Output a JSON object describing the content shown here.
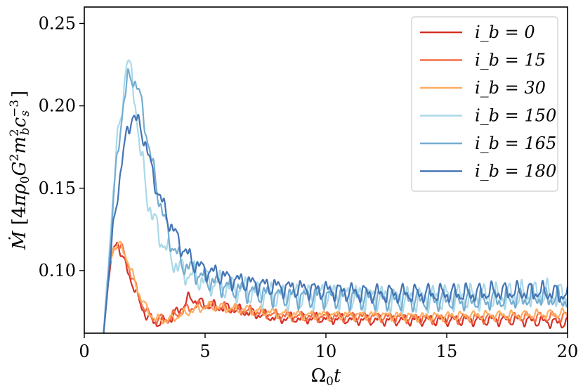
{
  "chart_data": {
    "type": "line",
    "xlabel": "Ω₀t",
    "ylabel": "Ṁ [4πρ₀G²m_b²c_s⁻³]",
    "xlim": [
      0,
      20
    ],
    "ylim": [
      0.062,
      0.26
    ],
    "xticks": [
      0,
      5,
      10,
      15,
      20
    ],
    "xtick_labels": [
      "0",
      "5",
      "10",
      "15",
      "20"
    ],
    "yticks": [
      0.1,
      0.15,
      0.2,
      0.25
    ],
    "ytick_labels": [
      "0.10",
      "0.15",
      "0.20",
      "0.25"
    ],
    "grid": false,
    "legend_position": "top-right",
    "series": [
      {
        "name": "i_b = 0",
        "legend_label": "i_b = 0",
        "color": "#d73027",
        "x": [
          0.8,
          1.0,
          1.2,
          1.35,
          1.5,
          1.7,
          2.0,
          2.3,
          2.6,
          3.0,
          3.5,
          4.0,
          4.3,
          4.6,
          5.0,
          5.5,
          6.0,
          7.0,
          8.0,
          9.0,
          10.0,
          12.0,
          14.0,
          16.0,
          18.0,
          20.0
        ],
        "y": [
          0.062,
          0.095,
          0.112,
          0.118,
          0.112,
          0.103,
          0.092,
          0.08,
          0.072,
          0.068,
          0.07,
          0.077,
          0.083,
          0.082,
          0.079,
          0.078,
          0.077,
          0.074,
          0.071,
          0.071,
          0.071,
          0.07,
          0.07,
          0.07,
          0.07,
          0.068
        ],
        "amp": 0.004
      },
      {
        "name": "i_b = 15",
        "legend_label": "i_b = 15",
        "color": "#f46d43",
        "x": [
          0.8,
          1.0,
          1.2,
          1.4,
          1.6,
          1.8,
          2.0,
          2.3,
          2.6,
          3.0,
          3.5,
          4.0,
          4.5,
          5.0,
          5.5,
          6.0,
          7.0,
          8.0,
          9.0,
          10.0,
          12.0,
          14.0,
          16.0,
          18.0,
          20.0
        ],
        "y": [
          0.062,
          0.098,
          0.113,
          0.116,
          0.112,
          0.104,
          0.095,
          0.083,
          0.074,
          0.07,
          0.071,
          0.075,
          0.078,
          0.079,
          0.078,
          0.077,
          0.075,
          0.073,
          0.072,
          0.072,
          0.072,
          0.071,
          0.071,
          0.072,
          0.072
        ],
        "amp": 0.0038
      },
      {
        "name": "i_b = 30",
        "legend_label": "i_b = 30",
        "color": "#fdae61",
        "x": [
          0.8,
          1.0,
          1.2,
          1.4,
          1.6,
          1.8,
          2.0,
          2.3,
          2.6,
          3.0,
          3.5,
          4.0,
          4.5,
          5.0,
          5.5,
          6.0,
          7.0,
          8.0,
          9.0,
          10.0,
          12.0,
          14.0,
          16.0,
          18.0,
          20.0
        ],
        "y": [
          0.062,
          0.1,
          0.114,
          0.116,
          0.113,
          0.106,
          0.097,
          0.085,
          0.076,
          0.07,
          0.07,
          0.073,
          0.076,
          0.078,
          0.078,
          0.077,
          0.076,
          0.074,
          0.073,
          0.073,
          0.073,
          0.072,
          0.073,
          0.073,
          0.074
        ],
        "amp": 0.0035
      },
      {
        "name": "i_b = 150",
        "legend_label": "i_b = 150",
        "color": "#abd9e9",
        "x": [
          0.8,
          1.0,
          1.2,
          1.4,
          1.6,
          1.75,
          1.9,
          2.1,
          2.3,
          2.6,
          3.0,
          3.5,
          4.0,
          4.5,
          5.0,
          5.5,
          6.0,
          7.0,
          8.0,
          9.0,
          10.0,
          11.0,
          12.0,
          13.0,
          14.0,
          15.0,
          16.0,
          17.0,
          18.0,
          19.0,
          20.0
        ],
        "y": [
          0.062,
          0.105,
          0.15,
          0.18,
          0.205,
          0.23,
          0.22,
          0.205,
          0.175,
          0.145,
          0.125,
          0.11,
          0.1,
          0.097,
          0.094,
          0.092,
          0.09,
          0.087,
          0.085,
          0.085,
          0.086,
          0.085,
          0.084,
          0.083,
          0.083,
          0.084,
          0.084,
          0.084,
          0.085,
          0.086,
          0.084
        ],
        "amp": 0.01
      },
      {
        "name": "i_b = 165",
        "legend_label": "i_b = 165",
        "color": "#74add1",
        "x": [
          0.8,
          1.0,
          1.2,
          1.4,
          1.6,
          1.8,
          2.0,
          2.2,
          2.5,
          2.8,
          3.0,
          3.5,
          4.0,
          4.5,
          5.0,
          5.5,
          6.0,
          7.0,
          8.0,
          9.0,
          10.0,
          11.0,
          12.0,
          13.0,
          14.0,
          15.0,
          16.0,
          17.0,
          18.0,
          19.0,
          20.0
        ],
        "y": [
          0.062,
          0.1,
          0.14,
          0.175,
          0.2,
          0.215,
          0.218,
          0.212,
          0.19,
          0.165,
          0.15,
          0.12,
          0.105,
          0.1,
          0.095,
          0.092,
          0.09,
          0.087,
          0.085,
          0.084,
          0.084,
          0.083,
          0.083,
          0.082,
          0.082,
          0.082,
          0.082,
          0.082,
          0.083,
          0.084,
          0.082
        ],
        "amp": 0.008
      },
      {
        "name": "i_b = 180",
        "legend_label": "i_b = 180",
        "color": "#4575b4",
        "x": [
          0.8,
          1.0,
          1.2,
          1.4,
          1.6,
          1.8,
          2.0,
          2.2,
          2.5,
          2.8,
          3.0,
          3.5,
          4.0,
          4.5,
          5.0,
          5.5,
          6.0,
          7.0,
          8.0,
          9.0,
          10.0,
          11.0,
          12.0,
          13.0,
          14.0,
          15.0,
          16.0,
          17.0,
          18.0,
          19.0,
          20.0
        ],
        "y": [
          0.062,
          0.095,
          0.125,
          0.15,
          0.17,
          0.185,
          0.195,
          0.19,
          0.18,
          0.16,
          0.15,
          0.13,
          0.115,
          0.105,
          0.1,
          0.098,
          0.095,
          0.092,
          0.09,
          0.089,
          0.088,
          0.087,
          0.086,
          0.086,
          0.086,
          0.086,
          0.086,
          0.087,
          0.087,
          0.087,
          0.085
        ],
        "amp": 0.007
      }
    ]
  }
}
